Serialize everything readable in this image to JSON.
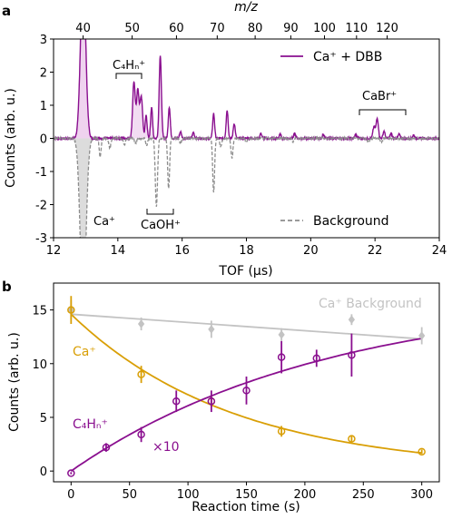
{
  "colors": {
    "purple": "#8a0f8f",
    "gray": "#8c8c8c",
    "gold": "#d99f06",
    "lightgray": "#c3c3c3",
    "fill_purple": "#efd3ef",
    "fill_gray": "#dcdcdc"
  },
  "chart_data": [
    {
      "panel": "a",
      "type": "line",
      "xlabel": "TOF (µs)",
      "ylabel": "Counts (arb. u.)",
      "top_axis_label": "m/z",
      "xlim": [
        12,
        24
      ],
      "ylim": [
        -3,
        3
      ],
      "x_ticks": [
        12,
        14,
        16,
        18,
        20,
        22,
        24
      ],
      "y_ticks": [
        -3,
        -2,
        -1,
        0,
        1,
        2,
        3
      ],
      "top_ticks": [
        40,
        50,
        60,
        70,
        80,
        90,
        100,
        110,
        120
      ],
      "legend": {
        "placement": "top-right"
      },
      "annotations": {
        "c4hn": "C₄Hₙ⁺",
        "cabr": "CaBr⁺",
        "ca": "Ca⁺",
        "caoh": "CaOH⁺"
      },
      "series": [
        {
          "name": "Ca⁺ + DBB",
          "color": "#8a0f8f",
          "peaks": [
            {
              "tof": 12.92,
              "height": 5.0,
              "width": 0.08
            },
            {
              "tof": 14.5,
              "height": 1.7,
              "width": 0.04
            },
            {
              "tof": 14.62,
              "height": 1.45,
              "width": 0.04
            },
            {
              "tof": 14.73,
              "height": 1.25,
              "width": 0.04
            },
            {
              "tof": 14.88,
              "height": 0.7,
              "width": 0.03
            },
            {
              "tof": 15.05,
              "height": 0.95,
              "width": 0.03
            },
            {
              "tof": 15.32,
              "height": 2.5,
              "width": 0.035
            },
            {
              "tof": 15.6,
              "height": 0.95,
              "width": 0.03
            },
            {
              "tof": 15.95,
              "height": 0.2,
              "width": 0.03
            },
            {
              "tof": 16.35,
              "height": 0.18,
              "width": 0.03
            },
            {
              "tof": 16.98,
              "height": 0.75,
              "width": 0.03
            },
            {
              "tof": 17.4,
              "height": 0.85,
              "width": 0.03
            },
            {
              "tof": 17.62,
              "height": 0.45,
              "width": 0.03
            },
            {
              "tof": 18.45,
              "height": 0.15,
              "width": 0.03
            },
            {
              "tof": 19.05,
              "height": 0.12,
              "width": 0.03
            },
            {
              "tof": 19.5,
              "height": 0.14,
              "width": 0.03
            },
            {
              "tof": 20.4,
              "height": 0.12,
              "width": 0.03
            },
            {
              "tof": 21.4,
              "height": 0.12,
              "width": 0.03
            },
            {
              "tof": 21.97,
              "height": 0.35,
              "width": 0.035
            },
            {
              "tof": 22.07,
              "height": 0.6,
              "width": 0.035
            },
            {
              "tof": 22.28,
              "height": 0.22,
              "width": 0.03
            },
            {
              "tof": 22.5,
              "height": 0.15,
              "width": 0.03
            },
            {
              "tof": 22.75,
              "height": 0.12,
              "width": 0.03
            },
            {
              "tof": 23.2,
              "height": 0.1,
              "width": 0.03
            }
          ]
        },
        {
          "name": "Background",
          "color": "#8c8c8c",
          "peaks": [
            {
              "tof": 12.92,
              "height": -5.0,
              "width": 0.09
            },
            {
              "tof": 13.45,
              "height": -0.55,
              "width": 0.03
            },
            {
              "tof": 13.75,
              "height": -0.3,
              "width": 0.03
            },
            {
              "tof": 14.2,
              "height": -0.2,
              "width": 0.03
            },
            {
              "tof": 14.55,
              "height": -0.15,
              "width": 0.03
            },
            {
              "tof": 14.9,
              "height": -0.2,
              "width": 0.03
            },
            {
              "tof": 15.2,
              "height": -2.05,
              "width": 0.035
            },
            {
              "tof": 15.58,
              "height": -1.5,
              "width": 0.03
            },
            {
              "tof": 15.95,
              "height": -0.15,
              "width": 0.03
            },
            {
              "tof": 16.98,
              "height": -1.65,
              "width": 0.03
            },
            {
              "tof": 17.2,
              "height": -0.25,
              "width": 0.03
            },
            {
              "tof": 17.55,
              "height": -0.6,
              "width": 0.03
            },
            {
              "tof": 18.0,
              "height": -0.1,
              "width": 0.03
            },
            {
              "tof": 19.45,
              "height": -0.1,
              "width": 0.03
            },
            {
              "tof": 21.8,
              "height": -0.12,
              "width": 0.03
            },
            {
              "tof": 22.2,
              "height": -0.12,
              "width": 0.03
            }
          ]
        }
      ]
    },
    {
      "panel": "b",
      "type": "scatter",
      "xlabel": "Reaction time (s)",
      "ylabel": "Counts (arb. u.)",
      "xlim": [
        -15,
        315
      ],
      "ylim": [
        -1,
        17.5
      ],
      "x_ticks": [
        0,
        50,
        100,
        150,
        200,
        250,
        300
      ],
      "y_ticks": [
        0,
        5,
        10,
        15
      ],
      "multiplier_label": "×10",
      "series": [
        {
          "name": "Ca⁺",
          "color": "#d99f06",
          "x": [
            0,
            60,
            120,
            180,
            240,
            300
          ],
          "y": [
            15.0,
            9.0,
            6.5,
            3.7,
            3.0,
            1.8
          ],
          "err": [
            1.3,
            0.8,
            0.5,
            0.5,
            0.3,
            0.2
          ],
          "fit": {
            "a": 14.6,
            "k": 0.0072
          }
        },
        {
          "name": "C₄Hₙ⁺",
          "color": "#8a0f8f",
          "x": [
            0,
            30,
            60,
            90,
            120,
            150,
            180,
            210,
            240
          ],
          "y": [
            -0.2,
            2.2,
            3.4,
            6.5,
            6.5,
            7.5,
            10.6,
            10.5,
            10.8
          ],
          "err": [
            0.1,
            0.4,
            0.7,
            1.0,
            1.0,
            1.3,
            1.5,
            0.8,
            2.0
          ],
          "fit": {
            "a": 16.5,
            "k": 0.0046
          }
        },
        {
          "name": "Ca⁺ Background",
          "color": "#c3c3c3",
          "x": [
            0,
            60,
            120,
            180,
            240,
            300
          ],
          "y": [
            15.0,
            13.7,
            13.2,
            12.7,
            14.1,
            12.6
          ],
          "err": [
            0.9,
            0.6,
            0.8,
            0.6,
            0.5,
            0.8
          ],
          "fit": {
            "y0": 14.6,
            "y1": 12.3
          }
        }
      ]
    }
  ]
}
